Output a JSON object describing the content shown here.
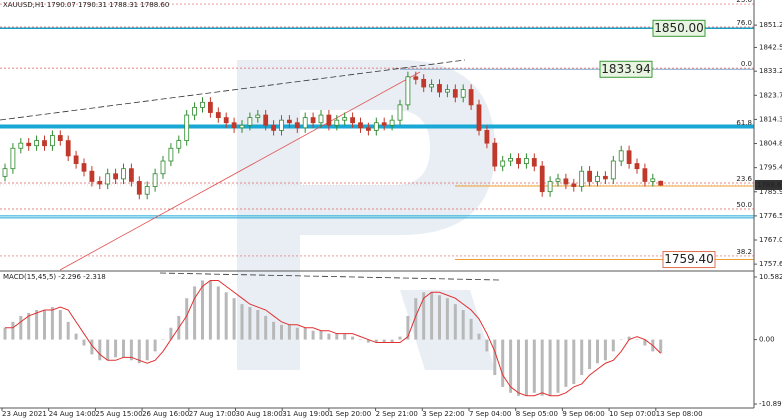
{
  "chart_data": {
    "type": "candlestick",
    "header": "XAUUSD,H1 1790.07 1790.31 1788.31 1788.60",
    "bull_color": "#2e8b2e",
    "bear_color": "#c0392b",
    "ylim": [
      1755.3,
      1860.3
    ],
    "yticks": [
      1851.25,
      {
        "value": 1842.5,
        "label": "1842.50"
      },
      {
        "value": 1833.2,
        "label": "1833.20"
      },
      1823.75,
      {
        "value": 1814.3,
        "label": "1814.30"
      },
      1804.85,
      {
        "value": 1795.4,
        "label": "1795.40"
      },
      1785.95,
      {
        "value": 1776.5,
        "label": "1776.50"
      },
      1767.05,
      {
        "value": 1757.6,
        "label": "1757.60"
      }
    ],
    "open": [
      1792,
      1795,
      1803,
      1805,
      1804,
      1806,
      1804,
      1808,
      1806,
      1800,
      1797,
      1794,
      1790,
      1789,
      1793,
      1791,
      1795,
      1790,
      1785,
      1788,
      1793,
      1798,
      1803,
      1806,
      1816,
      1819,
      1821,
      1817,
      1815,
      1813,
      1811,
      1812,
      1815,
      1816,
      1812,
      1810,
      1814,
      1813,
      1811,
      1815,
      1813,
      1816,
      1812,
      1814,
      1815,
      1813,
      1811,
      1810,
      1813,
      1812,
      1814,
      1820,
      1831,
      1830,
      1827,
      1828,
      1825,
      1826,
      1823,
      1826,
      1820,
      1810,
      1805,
      1796,
      1798,
      1799,
      1797,
      1799,
      1796,
      1786,
      1790,
      1791,
      1789,
      1788,
      1794,
      1790,
      1792,
      1791,
      1798,
      1802,
      1797,
      1795,
      1790,
      1790.07
    ],
    "high": [
      1797,
      1805,
      1807,
      1807,
      1808,
      1808,
      1810,
      1810,
      1808,
      1802,
      1799,
      1796,
      1792,
      1795,
      1795,
      1797,
      1797,
      1792,
      1790,
      1795,
      1800,
      1805,
      1808,
      1818,
      1821,
      1823,
      1823,
      1819,
      1817,
      1815,
      1814,
      1817,
      1818,
      1818,
      1814,
      1816,
      1816,
      1815,
      1817,
      1817,
      1818,
      1818,
      1816,
      1817,
      1817,
      1815,
      1813,
      1815,
      1815,
      1816,
      1822,
      1833,
      1833,
      1832,
      1830,
      1830,
      1828,
      1828,
      1828,
      1828,
      1822,
      1812,
      1807,
      1800,
      1801,
      1801,
      1801,
      1801,
      1798,
      1792,
      1793,
      1793,
      1791,
      1796,
      1796,
      1794,
      1794,
      1800,
      1804,
      1804,
      1799,
      1797,
      1793,
      1790.31
    ],
    "low": [
      1790,
      1793,
      1801,
      1802,
      1802,
      1802,
      1802,
      1804,
      1798,
      1795,
      1792,
      1788,
      1787,
      1787,
      1789,
      1789,
      1788,
      1783,
      1783,
      1786,
      1791,
      1796,
      1801,
      1804,
      1814,
      1817,
      1815,
      1813,
      1811,
      1809,
      1809,
      1810,
      1813,
      1810,
      1808,
      1808,
      1811,
      1809,
      1809,
      1811,
      1811,
      1810,
      1810,
      1812,
      1811,
      1809,
      1808,
      1808,
      1810,
      1810,
      1812,
      1818,
      1828,
      1825,
      1825,
      1823,
      1823,
      1821,
      1821,
      1818,
      1808,
      1803,
      1794,
      1794,
      1796,
      1795,
      1795,
      1794,
      1784,
      1784,
      1788,
      1787,
      1786,
      1786,
      1788,
      1788,
      1789,
      1789,
      1796,
      1795,
      1793,
      1788,
      1788,
      1788.31
    ],
    "close": [
      1795,
      1803,
      1805,
      1804,
      1806,
      1804,
      1808,
      1806,
      1800,
      1797,
      1794,
      1790,
      1789,
      1793,
      1791,
      1795,
      1790,
      1785,
      1788,
      1793,
      1798,
      1803,
      1806,
      1816,
      1819,
      1821,
      1817,
      1815,
      1813,
      1811,
      1812,
      1815,
      1816,
      1812,
      1810,
      1814,
      1813,
      1811,
      1815,
      1813,
      1816,
      1812,
      1814,
      1815,
      1813,
      1811,
      1810,
      1813,
      1812,
      1814,
      1820,
      1831,
      1830,
      1827,
      1828,
      1825,
      1826,
      1823,
      1826,
      1820,
      1810,
      1805,
      1796,
      1798,
      1799,
      1797,
      1799,
      1796,
      1786,
      1790,
      1791,
      1789,
      1788,
      1794,
      1790,
      1792,
      1791,
      1798,
      1802,
      1797,
      1795,
      1790,
      1791,
      1788.6
    ],
    "current_price": {
      "value": 1788.6,
      "label": "1788.60"
    },
    "levels": [
      {
        "value": 1850.0,
        "label": "1850.00",
        "color": "#1a9fc0"
      },
      {
        "value": 1833.94,
        "label": "1833.94",
        "color": "#7fa7c9"
      },
      {
        "value": 1811.5,
        "color": "#19a7d6"
      },
      {
        "value": 1776.5,
        "color": "#19a7d6"
      },
      {
        "value": 1788.2,
        "color": "#f0a030"
      },
      {
        "value": 1759.4,
        "label": "1759.40",
        "color": "#f0a030"
      }
    ],
    "fib_color": "#e06060",
    "fib_levels": [
      {
        "price": 1859.5,
        "text": "23.6"
      },
      {
        "price": 1850.5,
        "text": "76.0"
      },
      {
        "price": 1834.4,
        "text": "0.0"
      },
      {
        "price": 1811.3,
        "text": "61.8"
      },
      {
        "price": 1789.4,
        "text": "23.6"
      },
      {
        "price": 1779.2,
        "text": "50.0"
      },
      {
        "price": 1760.8,
        "text": "38.2"
      }
    ],
    "time_labels": [
      "23 Aug 2021",
      "24 Aug 14:00",
      "25 Aug 15:00",
      "26 Aug 16:00",
      "27 Aug 17:00",
      "30 Aug 18:00",
      "31 Aug 19:00",
      "1 Sep 20:00",
      "2 Sep 21:00",
      "3 Sep 22:00",
      "7 Sep 04:00",
      "8 Sep 05:00",
      "9 Sep 06:00",
      "10 Sep 07:00",
      "13 Sep 08:00"
    ],
    "macd": {
      "title": "MACD(15,45,5) -2.296 -2.318",
      "ylim": [
        -11.57,
        11.43
      ],
      "yticks": [
        10.582,
        {
          "value": 0,
          "label": "0.00"
        },
        -10.898
      ],
      "hist_color": "#b8b8b8",
      "signal_color": "#e03030",
      "histogram": [
        2,
        3,
        4,
        4.5,
        5,
        5,
        5.5,
        5,
        3,
        1,
        -1,
        -2.5,
        -3.5,
        -3.5,
        -3,
        -3,
        -3.5,
        -4,
        -3.5,
        -2,
        0,
        2,
        4,
        7,
        9,
        10,
        10,
        9,
        8,
        7,
        6,
        5.5,
        5,
        4,
        3,
        2.5,
        2.5,
        2,
        2,
        1.5,
        1.5,
        1,
        1,
        1,
        0.5,
        0,
        -0.5,
        -0.5,
        -0.5,
        -0.5,
        0.5,
        4,
        7,
        8,
        8,
        7.5,
        7,
        6,
        5,
        3.5,
        1,
        -2,
        -6,
        -8,
        -9,
        -9.5,
        -9.5,
        -9,
        -9.5,
        -9.5,
        -9,
        -8,
        -7.5,
        -6,
        -5,
        -4,
        -3.5,
        -2,
        0,
        0.5,
        0,
        -1,
        -2,
        -2.296
      ],
      "signal": [
        2,
        2,
        3,
        4,
        4.5,
        5,
        5,
        5.5,
        5,
        3,
        1,
        -1,
        -2.5,
        -3.5,
        -3.5,
        -3,
        -3,
        -3.5,
        -4,
        -3.5,
        -2,
        0,
        2,
        4,
        7,
        9,
        10,
        10,
        9,
        8,
        7,
        6,
        5.5,
        5,
        4,
        3,
        2.5,
        2.5,
        2,
        2,
        1.5,
        1.5,
        1,
        1,
        1,
        0.5,
        0,
        -0.5,
        -0.5,
        -0.5,
        -0.5,
        0.5,
        4,
        7,
        8,
        8,
        7.5,
        7,
        6,
        5,
        3.5,
        1,
        -2,
        -6,
        -8,
        -9,
        -9.5,
        -9.5,
        -9,
        -9.5,
        -9.5,
        -9,
        -8,
        -7.5,
        -6,
        -5,
        -4,
        -3.5,
        -2,
        0,
        0.5,
        0,
        -1,
        -2.318
      ]
    }
  }
}
